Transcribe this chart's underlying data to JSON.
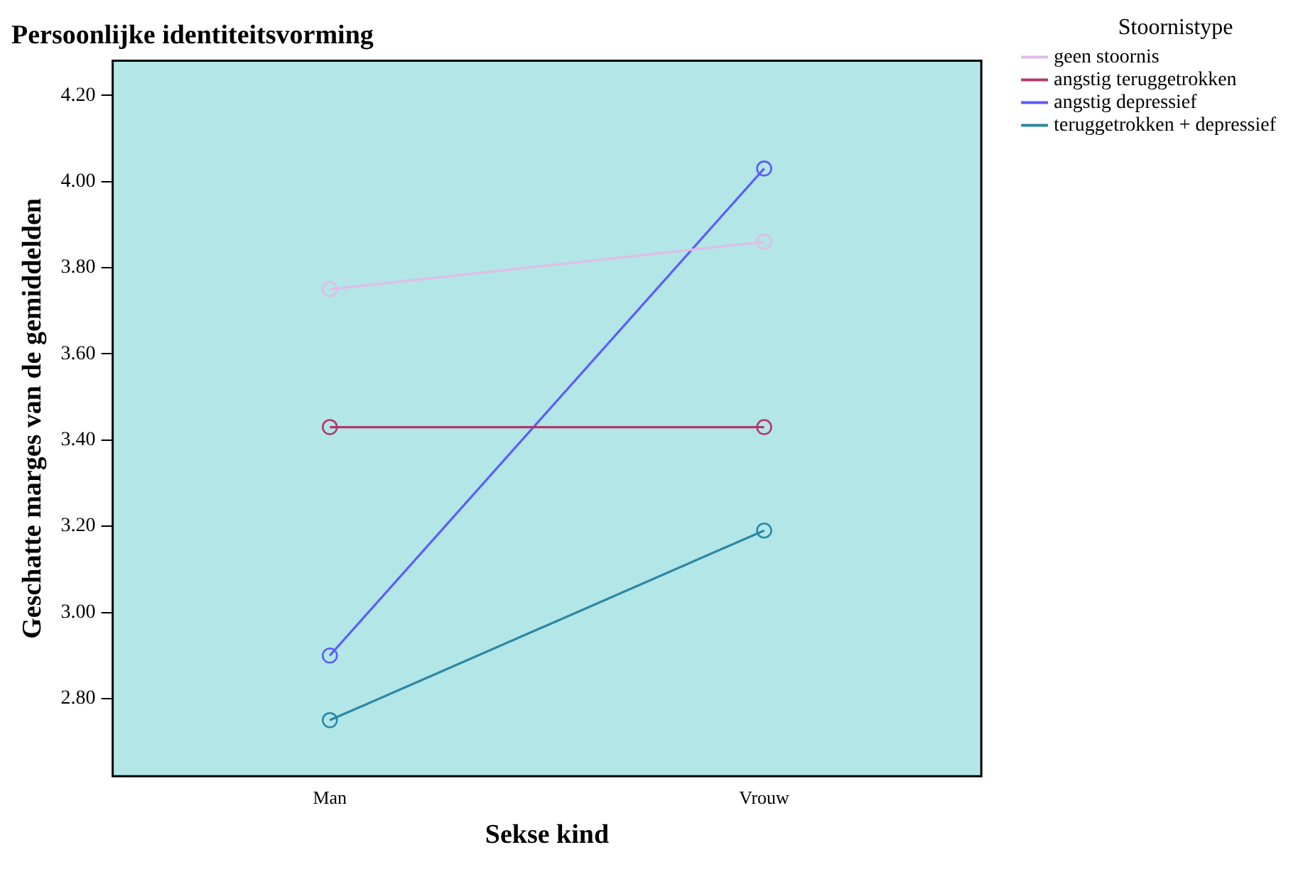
{
  "chart_data": {
    "type": "line",
    "title": "Persoonlijke identiteitsvorming",
    "xlabel": "Sekse kind",
    "ylabel": "Geschatte marges van de gemiddelden",
    "legend_title": "Stoornistype",
    "categories": [
      "Man",
      "Vrouw"
    ],
    "series": [
      {
        "name": "geen stoornis",
        "color": "#e0bce8",
        "values": [
          3.75,
          3.86
        ]
      },
      {
        "name": "angstig teruggetrokken",
        "color": "#b03a6e",
        "values": [
          3.43,
          3.43
        ]
      },
      {
        "name": "angstig depressief",
        "color": "#5c5cff",
        "values": [
          2.9,
          4.03
        ]
      },
      {
        "name": "teruggetrokken + depressief",
        "color": "#2a88a6",
        "values": [
          2.75,
          3.19
        ]
      }
    ],
    "ylim": [
      2.62,
      4.28
    ],
    "yticks": [
      {
        "value": 2.8,
        "label": "2.80"
      },
      {
        "value": 3.0,
        "label": "3.00"
      },
      {
        "value": 3.2,
        "label": "3.20"
      },
      {
        "value": 3.4,
        "label": "3.40"
      },
      {
        "value": 3.6,
        "label": "3.60"
      },
      {
        "value": 3.8,
        "label": "3.80"
      },
      {
        "value": 4.0,
        "label": "4.00"
      },
      {
        "value": 4.2,
        "label": "4.20"
      }
    ],
    "grid": false,
    "legend": "top right",
    "marker": "circle",
    "line_style": "solid"
  }
}
